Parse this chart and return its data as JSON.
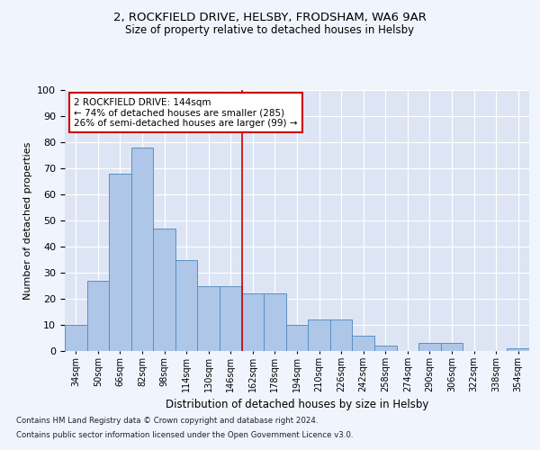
{
  "title1": "2, ROCKFIELD DRIVE, HELSBY, FRODSHAM, WA6 9AR",
  "title2": "Size of property relative to detached houses in Helsby",
  "xlabel": "Distribution of detached houses by size in Helsby",
  "ylabel": "Number of detached properties",
  "categories": [
    "34sqm",
    "50sqm",
    "66sqm",
    "82sqm",
    "98sqm",
    "114sqm",
    "130sqm",
    "146sqm",
    "162sqm",
    "178sqm",
    "194sqm",
    "210sqm",
    "226sqm",
    "242sqm",
    "258sqm",
    "274sqm",
    "290sqm",
    "306sqm",
    "322sqm",
    "338sqm",
    "354sqm"
  ],
  "values": [
    10,
    27,
    68,
    78,
    47,
    35,
    25,
    25,
    22,
    22,
    10,
    12,
    12,
    6,
    2,
    0,
    3,
    3,
    0,
    0,
    1
  ],
  "bar_color": "#aec6e8",
  "bar_edge_color": "#5a8fc2",
  "vline_x": 7.5,
  "vline_color": "#cc0000",
  "annotation_box_text": "2 ROCKFIELD DRIVE: 144sqm\n← 74% of detached houses are smaller (285)\n26% of semi-detached houses are larger (99) →",
  "annotation_box_color": "#cc0000",
  "fig_facecolor": "#f0f4fc",
  "background_color": "#dde5f4",
  "ylim": [
    0,
    100
  ],
  "footnote1": "Contains HM Land Registry data © Crown copyright and database right 2024.",
  "footnote2": "Contains public sector information licensed under the Open Government Licence v3.0."
}
